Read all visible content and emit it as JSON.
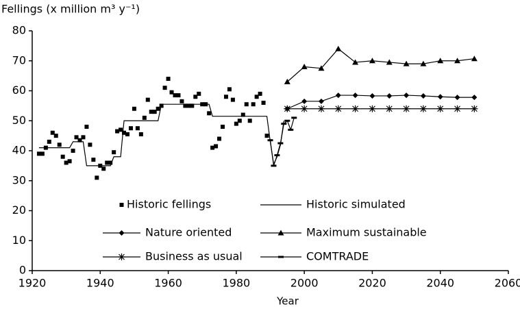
{
  "chart_data": {
    "type": "line",
    "title": "Fellings (x million m³ y⁻¹)",
    "xlabel": "Year",
    "xlim": [
      1920,
      2060
    ],
    "xticks": [
      1920,
      1940,
      1960,
      1980,
      2000,
      2020,
      2040,
      2060
    ],
    "ylim": [
      0,
      80
    ],
    "yticks": [
      0,
      10,
      20,
      30,
      40,
      50,
      60,
      70,
      80
    ],
    "grid": false,
    "legend": "inside",
    "series": [
      {
        "name": "Historic fellings",
        "color": "#000000",
        "marker": "square",
        "line": false,
        "x": [
          1922,
          1923,
          1924,
          1925,
          1926,
          1927,
          1928,
          1929,
          1930,
          1931,
          1932,
          1933,
          1934,
          1935,
          1936,
          1937,
          1938,
          1939,
          1940,
          1941,
          1942,
          1943,
          1944,
          1945,
          1946,
          1947,
          1948,
          1949,
          1950,
          1951,
          1952,
          1953,
          1954,
          1955,
          1956,
          1957,
          1958,
          1959,
          1960,
          1961,
          1962,
          1963,
          1964,
          1965,
          1966,
          1967,
          1968,
          1969,
          1970,
          1971,
          1972,
          1973,
          1974,
          1975,
          1976,
          1977,
          1978,
          1979,
          1980,
          1981,
          1982,
          1983,
          1984,
          1985,
          1986,
          1987,
          1988,
          1989
        ],
        "values": [
          39,
          39,
          41,
          43,
          46,
          45,
          42,
          38,
          36,
          36.5,
          40,
          44.5,
          43.5,
          44.5,
          48,
          42,
          37,
          31,
          35,
          34,
          36,
          36,
          39.5,
          46.5,
          47,
          46,
          45.5,
          47.5,
          54,
          47.5,
          45.5,
          51,
          57,
          53,
          53,
          54,
          55,
          61,
          64,
          59.5,
          58.5,
          58.5,
          56.5,
          55,
          55,
          55,
          58,
          59,
          55.5,
          55.5,
          52.5,
          41,
          41.5,
          44,
          48,
          58,
          60.5,
          57,
          49,
          50,
          52,
          55.5,
          50,
          55.5,
          58,
          59,
          56,
          45
        ]
      },
      {
        "name": "Historic simulated",
        "color": "#000000",
        "marker": "none",
        "line": true,
        "x": [
          1922,
          1931,
          1932,
          1935,
          1936,
          1943,
          1944,
          1946,
          1947,
          1957,
          1958,
          1972,
          1973,
          1989,
          1990,
          1991,
          1992,
          1993,
          1994
        ],
        "values": [
          41,
          41,
          43,
          43,
          35,
          35,
          38,
          38,
          50,
          50,
          55.5,
          55.5,
          51.5,
          51.5,
          43,
          35.5,
          38,
          42,
          50
        ]
      },
      {
        "name": "Nature oriented",
        "color": "#000000",
        "marker": "diamond",
        "line": true,
        "x": [
          1995,
          2000,
          2005,
          2010,
          2015,
          2020,
          2025,
          2030,
          2035,
          2040,
          2045,
          2050
        ],
        "values": [
          54,
          56.5,
          56.5,
          58.5,
          58.5,
          58.3,
          58.3,
          58.5,
          58.3,
          58,
          57.8,
          57.8
        ]
      },
      {
        "name": "Maximum sustainable",
        "color": "#000000",
        "marker": "triangle",
        "line": true,
        "x": [
          1995,
          2000,
          2005,
          2010,
          2015,
          2020,
          2025,
          2030,
          2035,
          2040,
          2045,
          2050
        ],
        "values": [
          63,
          68,
          67.5,
          74,
          69.5,
          70,
          69.5,
          69,
          69,
          70,
          70,
          70.7
        ]
      },
      {
        "name": "Business as usual",
        "color": "#000000",
        "marker": "star",
        "line": true,
        "x": [
          1995,
          2000,
          2005,
          2010,
          2015,
          2020,
          2025,
          2030,
          2035,
          2040,
          2045,
          2050
        ],
        "values": [
          54,
          54,
          54,
          54,
          54,
          54,
          54,
          54,
          54,
          54,
          54,
          54
        ]
      },
      {
        "name": "COMTRADE",
        "color": "#000000",
        "marker": "dash",
        "line": true,
        "x": [
          1990,
          1991,
          1992,
          1993,
          1994,
          1995,
          1996,
          1997
        ],
        "values": [
          43.5,
          35,
          38.5,
          42.5,
          49,
          50,
          47,
          51
        ]
      }
    ]
  }
}
